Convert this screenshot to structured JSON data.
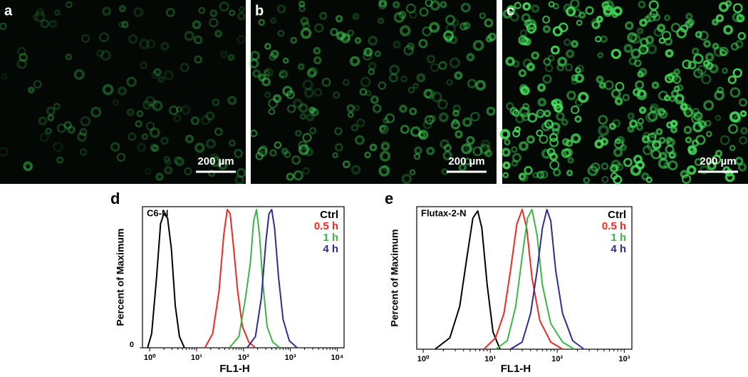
{
  "panels": [
    {
      "label": "a",
      "scale_bar": "200 µm"
    },
    {
      "label": "b",
      "scale_bar": "200 µm"
    },
    {
      "label": "c",
      "scale_bar": "200 µm"
    }
  ],
  "chart_data": [
    {
      "type": "line",
      "panel_label": "d",
      "annotation": "C6-N",
      "xlabel": "FL1-H",
      "ylabel": "Percent of Maximum",
      "log_x": true,
      "xlim": [
        0.7,
        14000
      ],
      "ylim": [
        0,
        100
      ],
      "xticks": [
        {
          "value": 1,
          "label": "10⁰"
        },
        {
          "value": 10,
          "label": "10¹"
        },
        {
          "value": 100,
          "label": "10²"
        },
        {
          "value": 1000,
          "label": "10³"
        },
        {
          "value": 10000,
          "label": "10⁴"
        }
      ],
      "yticks": [
        0
      ],
      "series": [
        {
          "name": "Ctrl",
          "color": "#000000",
          "x": [
            0.9,
            1.1,
            1.4,
            1.7,
            2,
            2.4,
            2.9,
            3.5,
            4.3,
            5.5
          ],
          "values": [
            0,
            10,
            50,
            88,
            95,
            92,
            70,
            30,
            8,
            0
          ]
        },
        {
          "name": "0.5 h",
          "color": "#ee2a24",
          "x": [
            15,
            22,
            30,
            38,
            45,
            52,
            62,
            75,
            95,
            130,
            180
          ],
          "values": [
            0,
            10,
            40,
            80,
            98,
            95,
            70,
            40,
            15,
            4,
            0
          ]
        },
        {
          "name": "1 h",
          "color": "#3db54a",
          "x": [
            50,
            80,
            110,
            140,
            165,
            190,
            220,
            260,
            320,
            420,
            600
          ],
          "values": [
            0,
            8,
            35,
            60,
            90,
            98,
            80,
            45,
            15,
            4,
            0
          ]
        },
        {
          "name": "4 h",
          "color": "#2b2f8f",
          "x": [
            120,
            180,
            240,
            300,
            350,
            400,
            460,
            560,
            700,
            950,
            1400
          ],
          "values": [
            0,
            8,
            35,
            75,
            95,
            98,
            85,
            50,
            20,
            5,
            0
          ]
        }
      ]
    },
    {
      "type": "line",
      "panel_label": "e",
      "annotation": "Flutax-2-N",
      "xlabel": "FL1-H",
      "ylabel": "Percent of Maximum",
      "log_x": true,
      "xlim": [
        0.8,
        1300
      ],
      "ylim": [
        0,
        100
      ],
      "xticks": [
        {
          "value": 1,
          "label": "10⁰"
        },
        {
          "value": 10,
          "label": "10¹"
        },
        {
          "value": 100,
          "label": "10²"
        },
        {
          "value": 1000,
          "label": "10³"
        }
      ],
      "series": [
        {
          "name": "Ctrl",
          "color": "#000000",
          "x": [
            1.5,
            2.5,
            3.5,
            4.5,
            5.5,
            6.5,
            7.5,
            9,
            11,
            14
          ],
          "values": [
            0,
            8,
            30,
            65,
            92,
            97,
            85,
            45,
            12,
            0
          ]
        },
        {
          "name": "0.5 h",
          "color": "#ee2a24",
          "x": [
            8,
            12,
            16,
            20,
            25,
            30,
            35,
            42,
            55,
            80,
            120
          ],
          "values": [
            0,
            8,
            25,
            55,
            88,
            98,
            85,
            50,
            20,
            5,
            0
          ]
        },
        {
          "name": "1 h",
          "color": "#3db54a",
          "x": [
            12,
            18,
            24,
            30,
            36,
            42,
            50,
            60,
            80,
            120,
            180
          ],
          "values": [
            0,
            6,
            30,
            65,
            92,
            98,
            80,
            45,
            18,
            5,
            0
          ]
        },
        {
          "name": "4 h",
          "color": "#2b2f8f",
          "x": [
            20,
            30,
            40,
            50,
            60,
            70,
            80,
            95,
            120,
            170,
            250
          ],
          "values": [
            0,
            5,
            25,
            55,
            85,
            98,
            90,
            55,
            25,
            6,
            0
          ]
        }
      ]
    }
  ]
}
